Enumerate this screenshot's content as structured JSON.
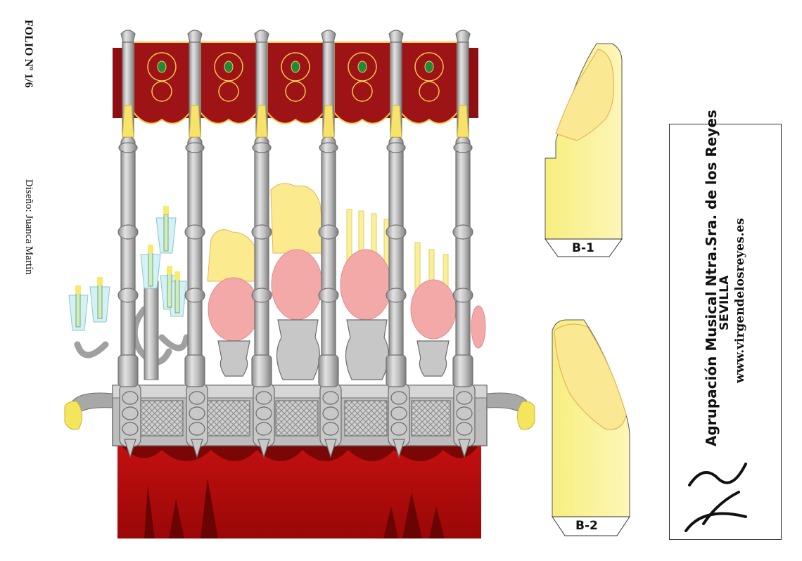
{
  "sheet": {
    "folio": "FOLIO Nº 1/6",
    "design_credit": "Diseño: Juanca Martín"
  },
  "tabs": {
    "b1_label": "B-1",
    "b2_label": "B-2"
  },
  "credit_box": {
    "organization": "Agrupación Musical Ntra.Sra. de los Reyes",
    "city": "SEVILLA",
    "website": "www.virgendelosreyes.es",
    "monogram": "VR"
  },
  "colors": {
    "canopy_red": "#8e0f12",
    "canopy_gold": "#f2c94c",
    "silver": "#b9b9b9",
    "silver_dark": "#8d8d8d",
    "drape_red": "#a80b0b",
    "drape_dark": "#7a0606",
    "flowers_pink": "#f4a3a3",
    "flowers_yellow": "#f8e57a",
    "candle_yellow": "#fbf09a",
    "glass_blue": "#c8eef5"
  }
}
